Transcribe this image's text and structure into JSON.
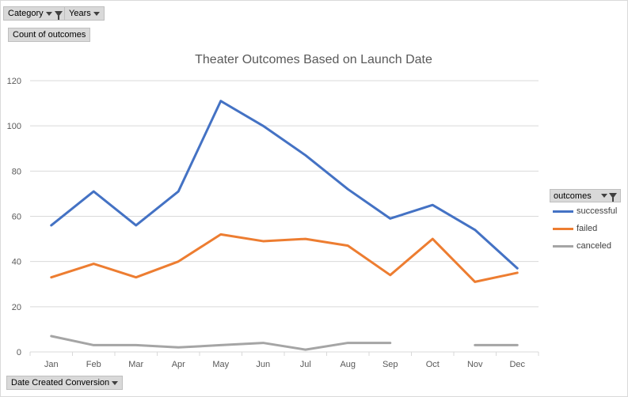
{
  "filters": {
    "category_label": "Category",
    "years_label": "Years",
    "values_label": "Count of outcomes",
    "axis_field_label": "Date Created Conversion"
  },
  "legend": {
    "title": "outcomes"
  },
  "chart_data": {
    "type": "line",
    "title": "Theater Outcomes Based on Launch Date",
    "xlabel": "",
    "ylabel": "",
    "categories": [
      "Jan",
      "Feb",
      "Mar",
      "Apr",
      "May",
      "Jun",
      "Jul",
      "Aug",
      "Sep",
      "Oct",
      "Nov",
      "Dec"
    ],
    "ylim": [
      0,
      120
    ],
    "yticks": [
      0,
      20,
      40,
      60,
      80,
      100,
      120
    ],
    "grid": true,
    "legend_position": "right",
    "series": [
      {
        "name": "successful",
        "color": "#4472c4",
        "values": [
          56,
          71,
          56,
          71,
          111,
          100,
          87,
          72,
          59,
          65,
          54,
          37
        ]
      },
      {
        "name": "failed",
        "color": "#ed7d31",
        "values": [
          33,
          39,
          33,
          40,
          52,
          49,
          50,
          47,
          34,
          50,
          31,
          35
        ]
      },
      {
        "name": "canceled",
        "color": "#a5a5a5",
        "values": [
          7,
          3,
          3,
          2,
          3,
          4,
          1,
          4,
          4,
          null,
          3,
          3
        ]
      }
    ]
  }
}
